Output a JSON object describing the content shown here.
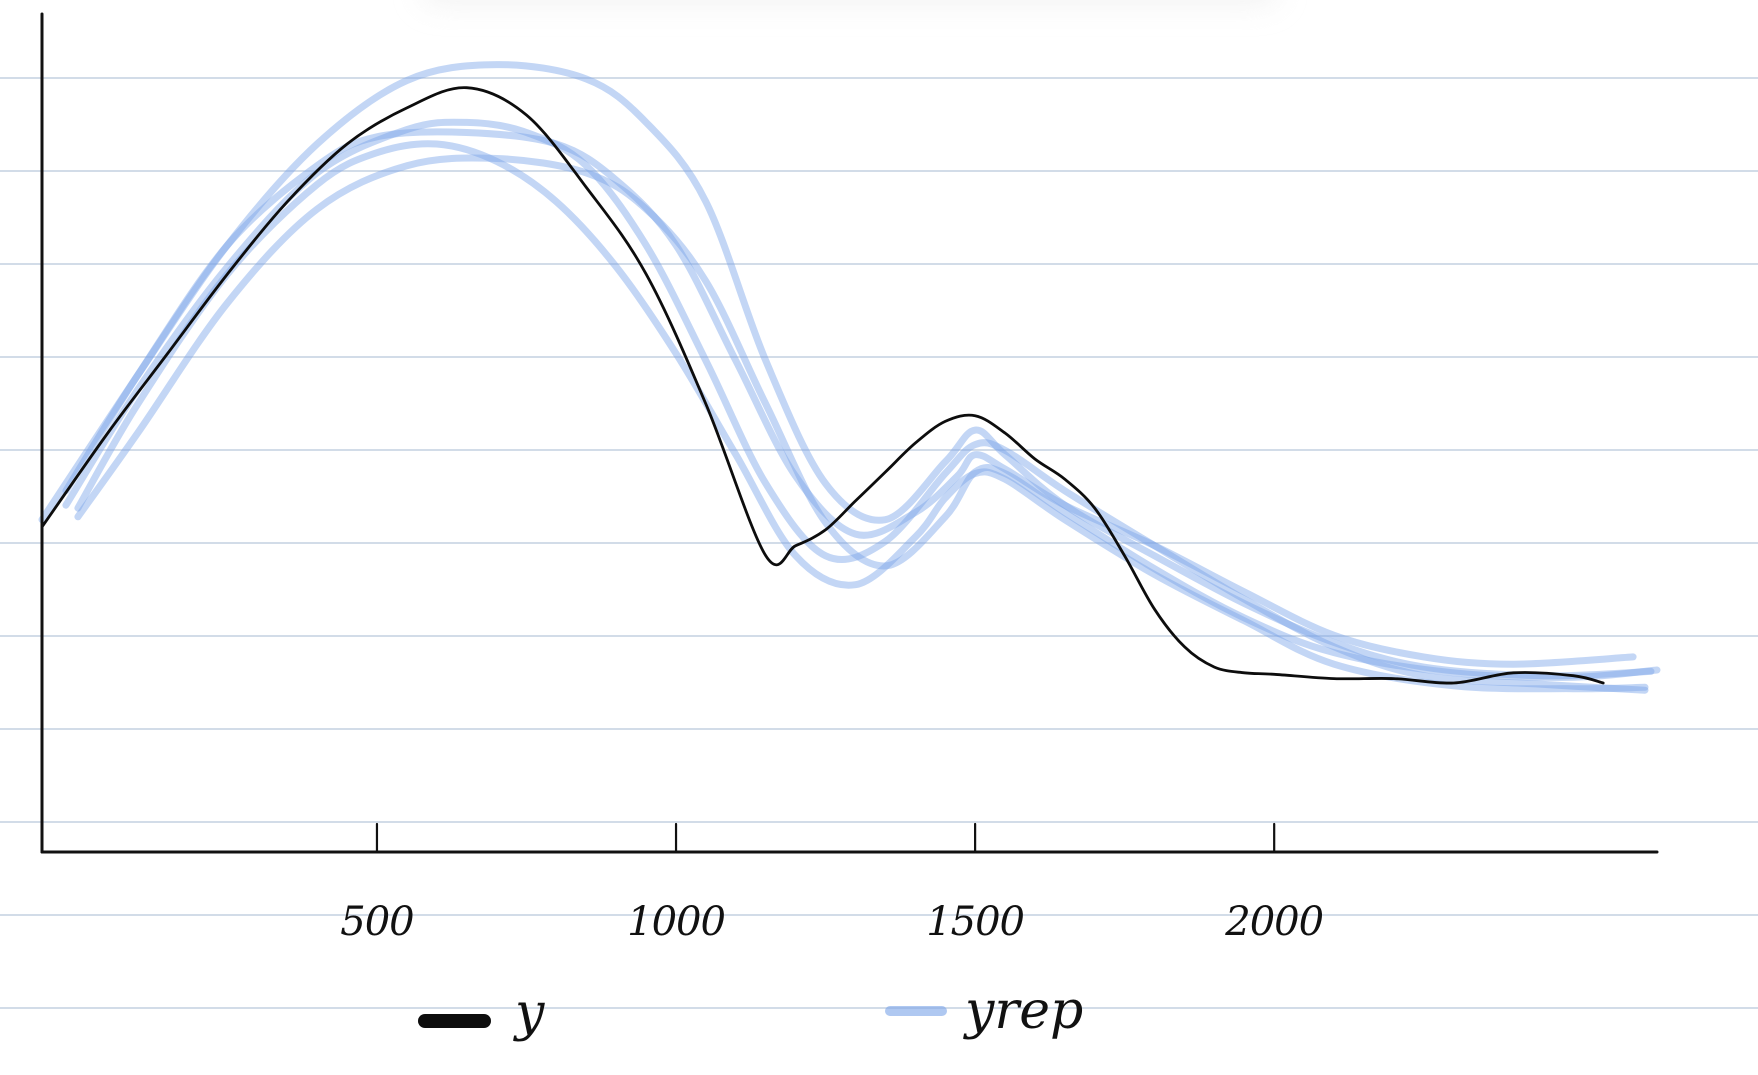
{
  "chart_data": {
    "type": "line",
    "title": "",
    "xlabel": "",
    "ylabel": "",
    "xlim": [
      -60,
      2640
    ],
    "ylim": [
      0,
      0.00058
    ],
    "x_ticks": [
      500,
      1000,
      1500,
      2000
    ],
    "x_tick_labels": [
      "500",
      "1000",
      "1500",
      "2000"
    ],
    "grid": "ruled-paper",
    "legend": {
      "placement": "bottom",
      "entries": [
        "y",
        "yrep"
      ]
    },
    "colors": {
      "y": "#0d0d0d",
      "yrep": "#7aa3e8"
    },
    "series": [
      {
        "name": "y",
        "x": [
          -60,
          50,
          150,
          250,
          350,
          450,
          550,
          650,
          750,
          850,
          950,
          1050,
          1150,
          1200,
          1250,
          1300,
          1350,
          1400,
          1450,
          1500,
          1550,
          1600,
          1650,
          1700,
          1750,
          1800,
          1850,
          1900,
          1950,
          2000,
          2100,
          2200,
          2300,
          2400,
          2500,
          2550
        ],
        "y": [
          0.000225,
          0.00029,
          0.000345,
          0.0004,
          0.00045,
          0.00049,
          0.000515,
          0.000529,
          0.00051,
          0.00046,
          0.0004,
          0.00031,
          0.000205,
          0.000212,
          0.000223,
          0.000243,
          0.000263,
          0.000283,
          0.000298,
          0.000302,
          0.00029,
          0.000272,
          0.000258,
          0.000238,
          0.000205,
          0.000168,
          0.000142,
          0.000128,
          0.000124,
          0.000123,
          0.00012,
          0.00012,
          0.000117,
          0.000124,
          0.000122,
          0.000117
        ]
      },
      {
        "name": "",
        "x": [
          -60,
          100,
          250,
          400,
          550,
          700,
          850,
          950,
          1050,
          1150,
          1250,
          1350,
          1450,
          1500,
          1550,
          1650,
          1800,
          1950,
          2100,
          2250,
          2450,
          2630
        ],
        "y": [
          0.00023,
          0.00033,
          0.00042,
          0.00049,
          0.000534,
          0.000545,
          0.000535,
          0.000505,
          0.00045,
          0.00034,
          0.000255,
          0.00023,
          0.00027,
          0.000292,
          0.000275,
          0.00024,
          0.000205,
          0.000172,
          0.000145,
          0.000128,
          0.000122,
          0.000125
        ]
      },
      {
        "name": "",
        "x": [
          -20,
          100,
          250,
          400,
          500,
          650,
          800,
          900,
          1000,
          1100,
          1200,
          1300,
          1400,
          1470,
          1500,
          1550,
          1650,
          1800,
          1950,
          2100,
          2250,
          2400,
          2600
        ],
        "y": [
          0.00025,
          0.00033,
          0.00042,
          0.000475,
          0.000495,
          0.000498,
          0.00049,
          0.000465,
          0.00042,
          0.00034,
          0.00026,
          0.00022,
          0.000235,
          0.00026,
          0.000275,
          0.000265,
          0.00024,
          0.000212,
          0.00018,
          0.00015,
          0.000135,
          0.00013,
          0.000135
        ]
      },
      {
        "name": "",
        "x": [
          -20,
          100,
          250,
          400,
          550,
          650,
          750,
          850,
          950,
          1050,
          1150,
          1250,
          1350,
          1450,
          1500,
          1550,
          1650,
          1800,
          1950,
          2100,
          2250,
          2450,
          2620
        ],
        "y": [
          0.00024,
          0.00032,
          0.000405,
          0.00047,
          0.0005,
          0.000505,
          0.000498,
          0.000475,
          0.00042,
          0.00034,
          0.000255,
          0.000205,
          0.000215,
          0.000262,
          0.000282,
          0.000278,
          0.00025,
          0.000212,
          0.000175,
          0.000142,
          0.000122,
          0.000116,
          0.000112
        ]
      },
      {
        "name": "",
        "x": [
          0,
          100,
          250,
          400,
          550,
          700,
          850,
          950,
          1050,
          1150,
          1250,
          1350,
          1450,
          1500,
          1550,
          1650,
          1800,
          1950,
          2100,
          2300,
          2500,
          2640
        ],
        "y": [
          0.000232,
          0.00029,
          0.00038,
          0.000445,
          0.000475,
          0.00048,
          0.00047,
          0.000445,
          0.000395,
          0.00031,
          0.000228,
          0.000198,
          0.000232,
          0.000263,
          0.000262,
          0.000235,
          0.000196,
          0.000162,
          0.000138,
          0.000124,
          0.000121,
          0.000126
        ]
      },
      {
        "name": "",
        "x": [
          0,
          100,
          250,
          400,
          500,
          600,
          700,
          800,
          900,
          1000,
          1100,
          1200,
          1300,
          1400,
          1450,
          1500,
          1550,
          1650,
          1800,
          1950,
          2100,
          2300,
          2500,
          2620
        ],
        "y": [
          0.000238,
          0.00031,
          0.0004,
          0.000462,
          0.000484,
          0.00049,
          0.000478,
          0.00045,
          0.000405,
          0.000345,
          0.000275,
          0.000205,
          0.000185,
          0.000218,
          0.000245,
          0.000262,
          0.000258,
          0.00023,
          0.000192,
          0.00016,
          0.00013,
          0.000115,
          0.000113,
          0.000114
        ]
      }
    ]
  }
}
